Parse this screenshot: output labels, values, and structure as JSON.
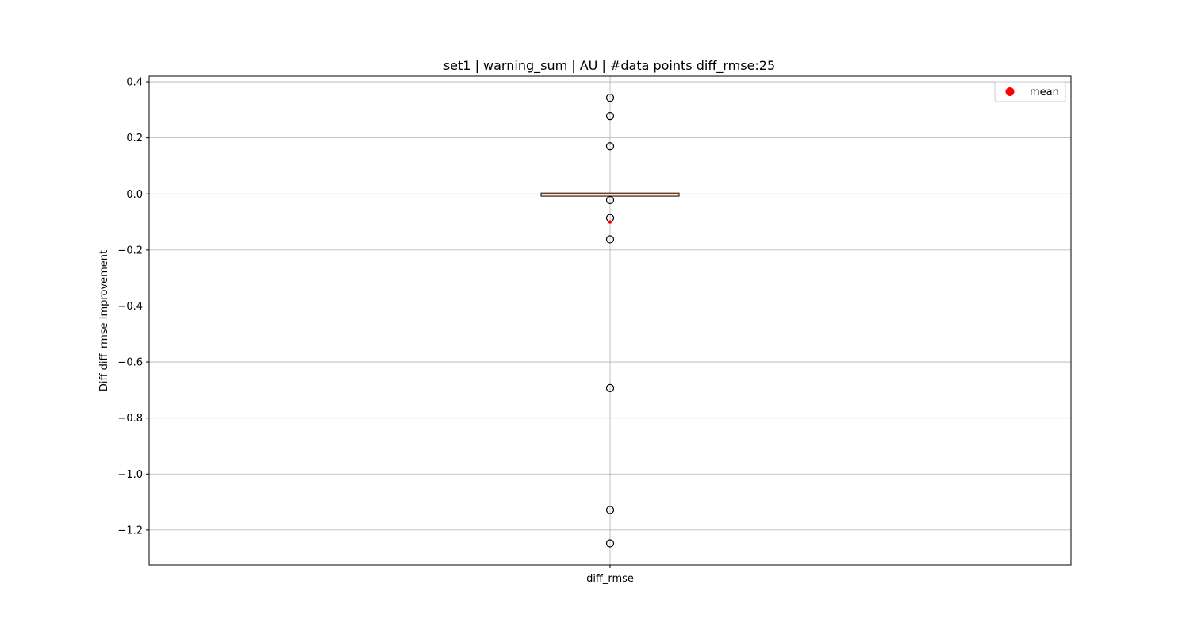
{
  "chart_data": {
    "type": "box",
    "title": "set1 | warning_sum | AU | #data points diff_rmse:25",
    "xlabel": "",
    "ylabel": "Diff diff_rmse Improvement",
    "categories": [
      "diff_rmse"
    ],
    "ylim": [
      -1.325,
      0.42
    ],
    "yticks": [
      0.4,
      0.2,
      0.0,
      -0.2,
      -0.4,
      -0.6,
      -0.8,
      -1.0,
      -1.2
    ],
    "ytick_labels": [
      "0.4",
      "0.2",
      "0.0",
      "−0.2",
      "−0.4",
      "−0.6",
      "−0.8",
      "−1.0",
      "−1.2"
    ],
    "grid": true,
    "legend": {
      "position": "top-right",
      "entries": [
        {
          "label": "mean",
          "color": "#ff0000",
          "marker": "circle"
        }
      ]
    },
    "box": {
      "q1": -0.008,
      "median": 0.0,
      "q3": 0.003,
      "whisker_low": -0.008,
      "whisker_high": 0.003,
      "mean": -0.1,
      "fliers": [
        0.343,
        0.278,
        0.17,
        -0.022,
        -0.086,
        -0.162,
        -0.693,
        -1.128,
        -1.247
      ]
    },
    "colors": {
      "box_fill": "#ffe0cc",
      "median": "#ff7f0e",
      "mean": "#ff0000",
      "grid": "#b0b0b0"
    }
  }
}
